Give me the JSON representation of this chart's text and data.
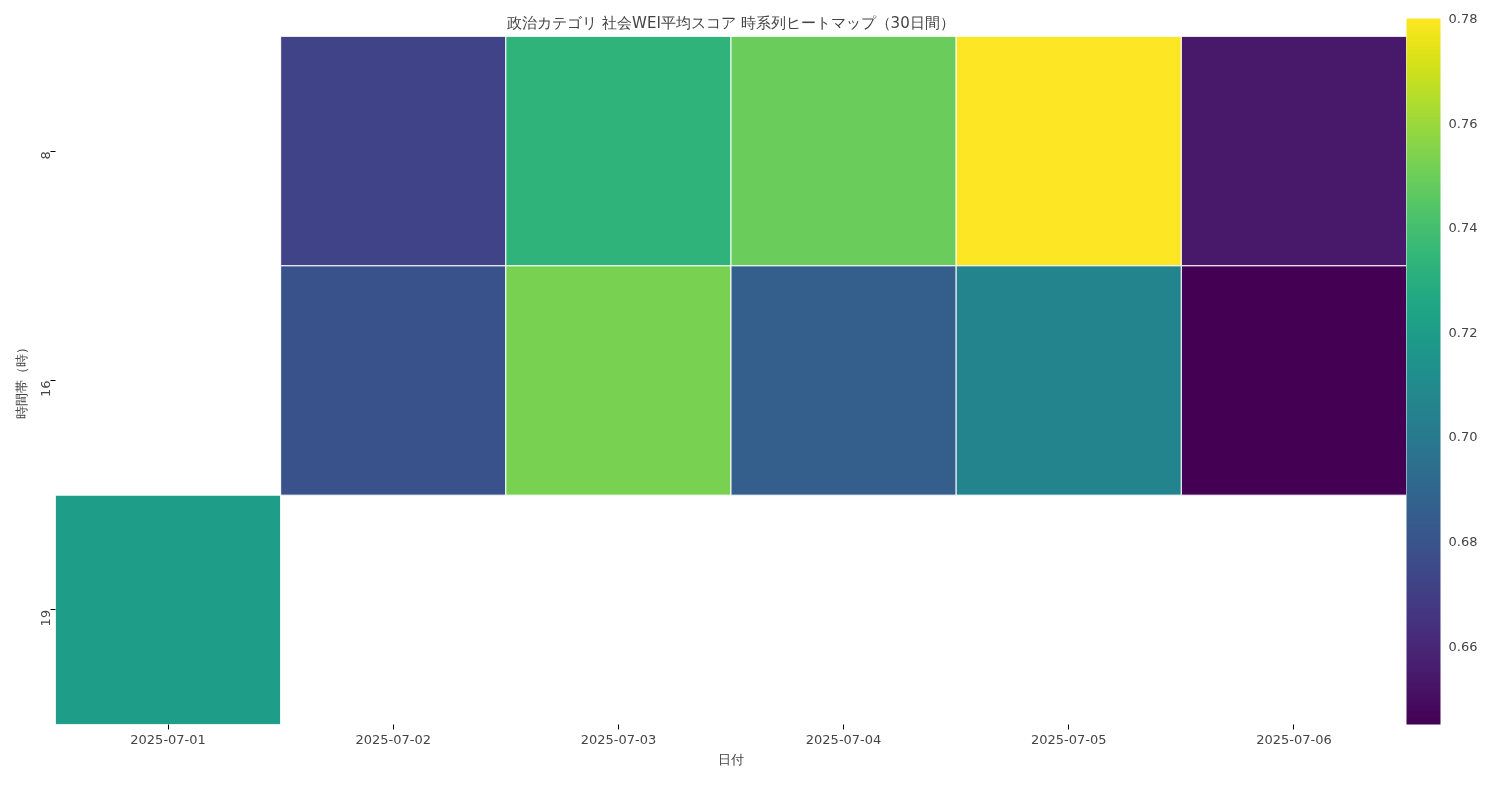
{
  "chart_data": {
    "type": "heatmap",
    "title": "政治カテゴリ 社会WEI平均スコア 時系列ヒートマップ（30日間）",
    "xlabel": "日付",
    "ylabel": "時間帯（時）",
    "categories": [
      "2025-07-01",
      "2025-07-02",
      "2025-07-03",
      "2025-07-04",
      "2025-07-05",
      "2025-07-06"
    ],
    "y_categories": [
      "8",
      "16",
      "19"
    ],
    "cells": [
      [
        null,
        0.672,
        0.733,
        0.749,
        0.78,
        0.654
      ],
      [
        null,
        0.679,
        0.753,
        0.686,
        0.706,
        0.645
      ],
      [
        0.72,
        null,
        null,
        null,
        null,
        null
      ]
    ],
    "clim": [
      0.645,
      0.78
    ],
    "cticks": [
      0.66,
      0.68,
      {
        "value": 0.7,
        "label": "0.70"
      },
      0.72,
      0.74,
      0.76,
      0.78
    ]
  }
}
